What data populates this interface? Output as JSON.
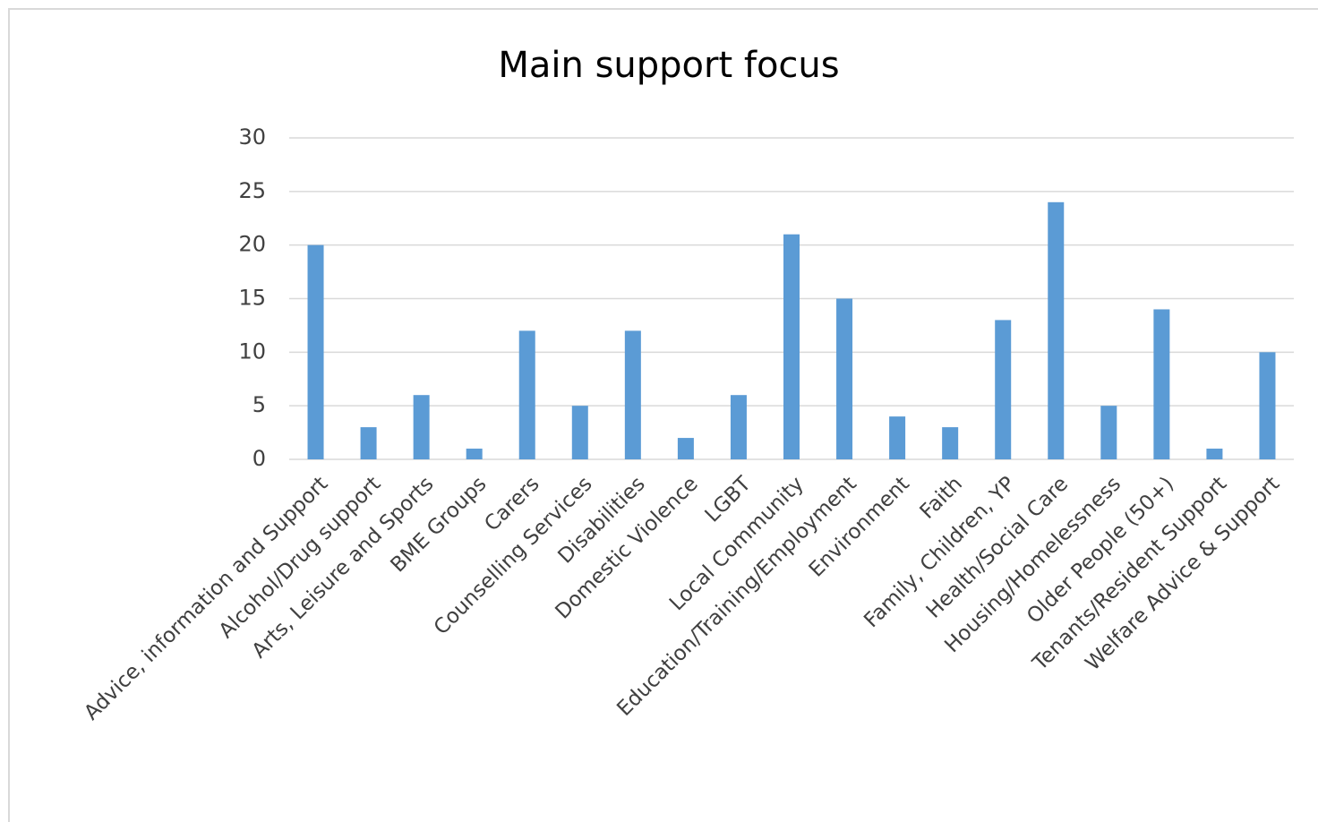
{
  "chart_data": {
    "type": "bar",
    "title": "Main support focus",
    "categories": [
      "Advice, information and Support",
      "Alcohol/Drug support",
      "Arts, Leisure and Sports",
      "BME Groups",
      "Carers",
      "Counselling Services",
      "Disabilities",
      "Domestic Violence",
      "LGBT",
      "Local Community",
      "Education/Training/Employment",
      "Environment",
      "Faith",
      "Family, Children, YP",
      "Health/Social Care",
      "Housing/Homelessness",
      "Older People (50+)",
      "Tenants/Resident Support",
      "Welfare Advice & Support"
    ],
    "values": [
      20,
      3,
      6,
      1,
      12,
      5,
      12,
      2,
      6,
      21,
      15,
      4,
      3,
      13,
      24,
      5,
      14,
      1,
      10
    ],
    "color": "#5b9bd5",
    "ylim": [
      0,
      30
    ],
    "yticks": [
      0,
      5,
      10,
      15,
      20,
      25,
      30
    ],
    "grid": true
  }
}
